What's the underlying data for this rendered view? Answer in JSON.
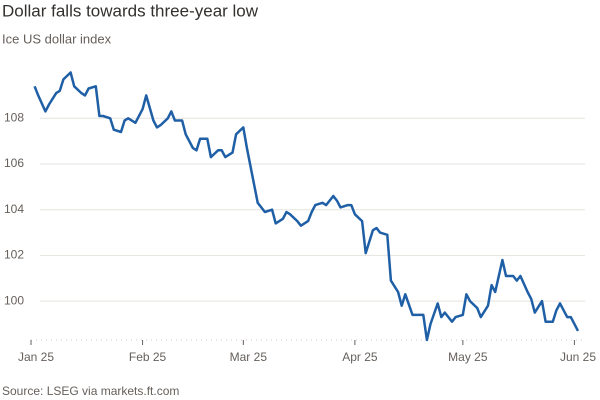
{
  "chart_data": {
    "type": "line",
    "title": "Dollar falls towards three-year low",
    "subtitle": "Ice US dollar index",
    "source": "Source: LSEG via markets.ft.com",
    "x": [
      1,
      2,
      4,
      5,
      7,
      8,
      9,
      11,
      12,
      14,
      15,
      16,
      18,
      19,
      20,
      22,
      23,
      25,
      26,
      27,
      29,
      31,
      32,
      34,
      35,
      36,
      38,
      39,
      40,
      42,
      43,
      45,
      46,
      47,
      49,
      50,
      52,
      53,
      54,
      56,
      57,
      59,
      60,
      61,
      63,
      64,
      65,
      67,
      68,
      70,
      71,
      72,
      74,
      75,
      77,
      78,
      79,
      81,
      82,
      84,
      85,
      86,
      88,
      89,
      90,
      92,
      93,
      95,
      96,
      97,
      99,
      100,
      102,
      103,
      104,
      106,
      107,
      109,
      110,
      111,
      113,
      114,
      115,
      117,
      118,
      120,
      121,
      122,
      124,
      125,
      127,
      128,
      129,
      131,
      132,
      134,
      135,
      136,
      138,
      139,
      140,
      142,
      143,
      145,
      146,
      147,
      149,
      150,
      152
    ],
    "series": [
      {
        "name": "Ice US dollar index",
        "color": "#1f5fa6",
        "values": [
          109.4,
          109.0,
          108.3,
          108.6,
          109.1,
          109.2,
          109.7,
          110.0,
          109.4,
          109.1,
          109.0,
          109.3,
          109.4,
          108.1,
          108.1,
          108.0,
          107.5,
          107.4,
          107.9,
          108.0,
          107.8,
          108.4,
          109.0,
          107.9,
          107.6,
          107.7,
          108.0,
          108.3,
          107.9,
          107.9,
          107.3,
          106.7,
          106.6,
          107.1,
          107.1,
          106.3,
          106.6,
          106.6,
          106.3,
          106.5,
          107.3,
          107.6,
          106.7,
          105.9,
          104.3,
          104.1,
          103.9,
          104.0,
          103.4,
          103.6,
          103.9,
          103.8,
          103.5,
          103.3,
          103.5,
          103.9,
          104.2,
          104.3,
          104.2,
          104.6,
          104.4,
          104.1,
          104.2,
          104.2,
          103.8,
          103.5,
          102.1,
          103.1,
          103.2,
          103.0,
          102.9,
          100.9,
          100.4,
          99.8,
          100.3,
          99.4,
          99.4,
          99.4,
          98.3,
          99.0,
          99.9,
          99.3,
          99.5,
          99.1,
          99.3,
          99.4,
          100.3,
          100.0,
          99.7,
          99.3,
          99.8,
          100.7,
          100.4,
          101.8,
          101.1,
          101.1,
          100.9,
          101.1,
          100.4,
          100.1,
          99.5,
          100.0,
          99.1,
          99.1,
          99.6,
          99.9,
          99.3,
          99.3,
          98.7
        ]
      }
    ],
    "xlim": [
      0,
      152
    ],
    "xticks": [
      {
        "value": 0,
        "label": "Jan 25"
      },
      {
        "value": 31,
        "label": "Feb 25"
      },
      {
        "value": 59,
        "label": "Mar 25"
      },
      {
        "value": 90,
        "label": "Apr 25"
      },
      {
        "value": 120,
        "label": "May 25"
      },
      {
        "value": 151,
        "label": "Jun 25"
      }
    ],
    "ylim": [
      98.3,
      110.75
    ],
    "yticks": [
      100,
      102,
      104,
      106,
      108
    ],
    "grid": true
  }
}
